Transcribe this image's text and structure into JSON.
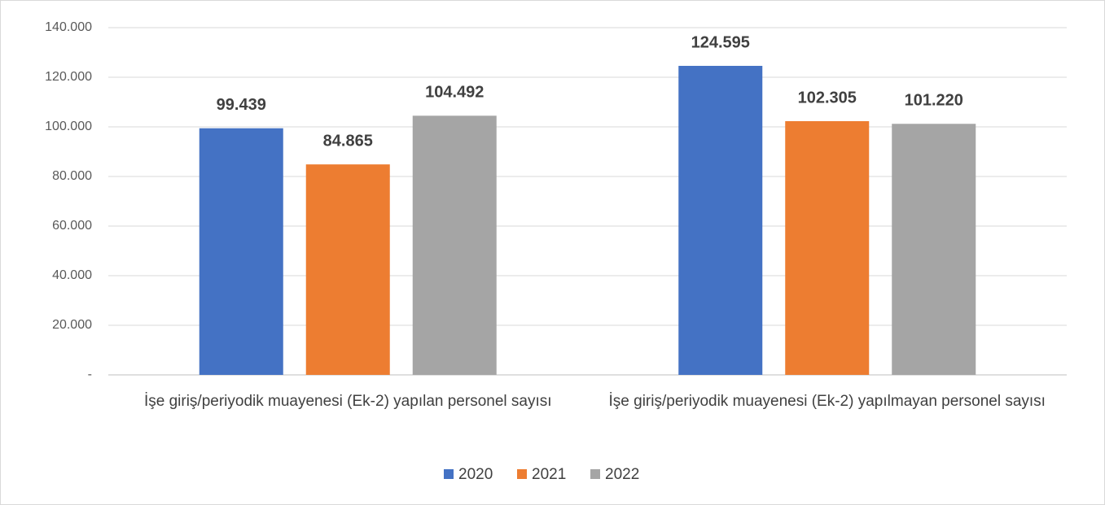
{
  "chart_data": {
    "type": "bar",
    "categories": [
      "İşe giriş/periyodik muayenesi (Ek-2) yapılan personel sayısı",
      "İşe giriş/periyodik muayenesi (Ek-2) yapılmayan personel sayısı"
    ],
    "series": [
      {
        "name": "2020",
        "color": "#4472c4",
        "values": [
          99439,
          124595
        ],
        "value_labels": [
          "99.439",
          "124.595"
        ]
      },
      {
        "name": "2021",
        "color": "#ed7d31",
        "values": [
          84865,
          102305
        ],
        "value_labels": [
          "84.865",
          "102.305"
        ]
      },
      {
        "name": "2022",
        "color": "#a5a5a5",
        "values": [
          104492,
          101220
        ],
        "value_labels": [
          "104.492",
          "101.220"
        ]
      }
    ],
    "ylim": [
      0,
      140000
    ],
    "yticks": [
      {
        "value": 0,
        "label": "-"
      },
      {
        "value": 20000,
        "label": "20.000"
      },
      {
        "value": 40000,
        "label": "40.000"
      },
      {
        "value": 60000,
        "label": "60.000"
      },
      {
        "value": 80000,
        "label": "80.000"
      },
      {
        "value": 100000,
        "label": "100.000"
      },
      {
        "value": 120000,
        "label": "120.000"
      },
      {
        "value": 140000,
        "label": "140.000"
      }
    ],
    "grid": true,
    "legend": "bottom"
  }
}
